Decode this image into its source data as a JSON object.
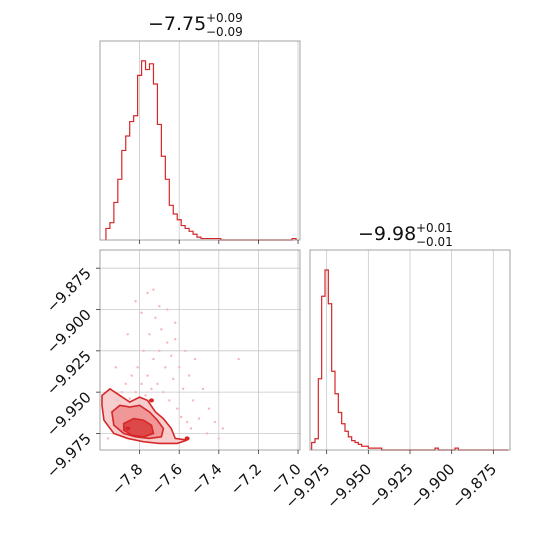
{
  "chart_data": [
    {
      "type": "histogram",
      "panel": "top-left",
      "title": {
        "value": "−7.75",
        "upper": "+0.09",
        "lower": "−0.09"
      },
      "xlim": [
        -8.0,
        -6.99
      ],
      "grid": true,
      "bins_x": [
        -7.96,
        -7.94,
        -7.92,
        -7.9,
        -7.88,
        -7.86,
        -7.84,
        -7.82,
        -7.8,
        -7.78,
        -7.76,
        -7.74,
        -7.72,
        -7.7,
        -7.68,
        -7.66,
        -7.64,
        -7.62,
        -7.6,
        -7.58,
        -7.56,
        -7.54,
        -7.52,
        -7.5,
        -7.48,
        -7.46,
        -7.44,
        -7.42,
        -7.4,
        -7.38,
        -7.36,
        -7.34,
        -7.32,
        -7.3,
        -7.28,
        -7.26,
        -7.24,
        -7.22,
        -7.2,
        -7.18,
        -7.16,
        -7.14,
        -7.12,
        -7.1,
        -7.08,
        -7.06,
        -7.04,
        -7.02
      ],
      "counts": [
        8,
        12,
        26,
        42,
        62,
        72,
        82,
        86,
        114,
        124,
        118,
        122,
        108,
        80,
        58,
        42,
        24,
        18,
        14,
        10,
        8,
        6,
        4,
        2,
        1,
        1,
        1,
        1,
        1,
        0,
        0,
        0,
        0,
        0,
        0,
        0,
        0,
        0,
        0,
        0,
        0,
        0,
        0,
        0,
        0,
        0,
        0,
        1
      ],
      "x_ticks": [
        "−7.8",
        "−7.6",
        "−7.4",
        "−7.2",
        "−7.0"
      ]
    },
    {
      "type": "scatter",
      "panel": "bottom-left",
      "xlim": [
        -8.0,
        -6.99
      ],
      "ylim": [
        -9.985,
        -9.864
      ],
      "grid": true,
      "points": [
        [
          -7.95,
          -9.962
        ],
        [
          -7.93,
          -9.968
        ],
        [
          -7.91,
          -9.955
        ],
        [
          -7.9,
          -9.972
        ],
        [
          -7.89,
          -9.95
        ],
        [
          -7.88,
          -9.96
        ],
        [
          -7.87,
          -9.945
        ],
        [
          -7.86,
          -9.966
        ],
        [
          -7.85,
          -9.954
        ],
        [
          -7.84,
          -9.94
        ],
        [
          -7.83,
          -9.962
        ],
        [
          -7.82,
          -9.95
        ],
        [
          -7.81,
          -9.935
        ],
        [
          -7.8,
          -9.958
        ],
        [
          -7.79,
          -9.945
        ],
        [
          -7.78,
          -9.925
        ],
        [
          -7.77,
          -9.952
        ],
        [
          -7.76,
          -9.94
        ],
        [
          -7.75,
          -9.915
        ],
        [
          -7.74,
          -9.948
        ],
        [
          -7.73,
          -9.93
        ],
        [
          -7.72,
          -9.905
        ],
        [
          -7.71,
          -9.945
        ],
        [
          -7.7,
          -9.925
        ],
        [
          -7.69,
          -9.912
        ],
        [
          -7.68,
          -9.95
        ],
        [
          -7.67,
          -9.935
        ],
        [
          -7.66,
          -9.9
        ],
        [
          -7.65,
          -9.955
        ],
        [
          -7.64,
          -9.928
        ],
        [
          -7.63,
          -9.942
        ],
        [
          -7.62,
          -9.918
        ],
        [
          -7.61,
          -9.96
        ],
        [
          -7.6,
          -9.935
        ],
        [
          -7.59,
          -9.965
        ],
        [
          -7.58,
          -9.948
        ],
        [
          -7.57,
          -9.925
        ],
        [
          -7.56,
          -9.968
        ],
        [
          -7.55,
          -9.94
        ],
        [
          -7.54,
          -9.972
        ],
        [
          -7.53,
          -9.955
        ],
        [
          -7.52,
          -9.93
        ],
        [
          -7.5,
          -9.966
        ],
        [
          -7.48,
          -9.948
        ],
        [
          -7.46,
          -9.975
        ],
        [
          -7.45,
          -9.96
        ],
        [
          -7.42,
          -9.968
        ],
        [
          -7.4,
          -9.978
        ],
        [
          -7.38,
          -9.972
        ],
        [
          -7.3,
          -9.93
        ],
        [
          -7.82,
          -9.895
        ],
        [
          -7.76,
          -9.89
        ],
        [
          -7.7,
          -9.898
        ],
        [
          -7.79,
          -9.902
        ],
        [
          -7.73,
          -9.888
        ],
        [
          -7.66,
          -9.92
        ],
        [
          -7.62,
          -9.908
        ],
        [
          -7.86,
          -9.915
        ],
        [
          -7.92,
          -9.935
        ],
        [
          -7.96,
          -9.978
        ]
      ],
      "contours": [
        {
          "level": "outer",
          "fill": "#f6c4c4",
          "polygon": [
            [
              -7.99,
              -9.952
            ],
            [
              -7.95,
              -9.948
            ],
            [
              -7.9,
              -9.952
            ],
            [
              -7.85,
              -9.956
            ],
            [
              -7.8,
              -9.953
            ],
            [
              -7.76,
              -9.955
            ],
            [
              -7.72,
              -9.962
            ],
            [
              -7.68,
              -9.966
            ],
            [
              -7.64,
              -9.972
            ],
            [
              -7.62,
              -9.978
            ],
            [
              -7.56,
              -9.979
            ],
            [
              -7.61,
              -9.981
            ],
            [
              -7.7,
              -9.981
            ],
            [
              -7.78,
              -9.98
            ],
            [
              -7.86,
              -9.978
            ],
            [
              -7.93,
              -9.975
            ],
            [
              -7.98,
              -9.967
            ],
            [
              -7.99,
              -9.958
            ]
          ]
        },
        {
          "level": "middle",
          "fill": "#ef8d8d",
          "polygon": [
            [
              -7.94,
              -9.962
            ],
            [
              -7.9,
              -9.958
            ],
            [
              -7.85,
              -9.959
            ],
            [
              -7.8,
              -9.958
            ],
            [
              -7.75,
              -9.962
            ],
            [
              -7.71,
              -9.967
            ],
            [
              -7.68,
              -9.972
            ],
            [
              -7.69,
              -9.977
            ],
            [
              -7.75,
              -9.978
            ],
            [
              -7.82,
              -9.977
            ],
            [
              -7.88,
              -9.975
            ],
            [
              -7.93,
              -9.97
            ]
          ]
        },
        {
          "level": "inner",
          "fill": "#d93b3b",
          "polygon": [
            [
              -7.88,
              -9.969
            ],
            [
              -7.83,
              -9.966
            ],
            [
              -7.78,
              -9.967
            ],
            [
              -7.74,
              -9.97
            ],
            [
              -7.73,
              -9.975
            ],
            [
              -7.78,
              -9.977
            ],
            [
              -7.84,
              -9.976
            ],
            [
              -7.88,
              -9.973
            ]
          ]
        }
      ],
      "x_ticks": [
        "−7.8",
        "−7.6",
        "−7.4",
        "−7.2",
        "−7.0"
      ],
      "y_ticks": [
        "−9.875",
        "−9.900",
        "−9.925",
        "−9.950",
        "−9.975"
      ]
    },
    {
      "type": "histogram",
      "panel": "bottom-right",
      "title": {
        "value": "−9.98",
        "upper": "+0.01",
        "lower": "−0.01"
      },
      "xlim": [
        -9.985,
        -9.865
      ],
      "grid": true,
      "bins_x": [
        -9.983,
        -9.981,
        -9.979,
        -9.977,
        -9.975,
        -9.973,
        -9.971,
        -9.969,
        -9.967,
        -9.965,
        -9.963,
        -9.961,
        -9.959,
        -9.957,
        -9.955,
        -9.953,
        -9.951,
        -9.949,
        -9.947,
        -9.945,
        -9.943,
        -9.941,
        -9.939,
        -9.937,
        -9.935,
        -9.933,
        -9.931,
        -9.929,
        -9.927,
        -9.925,
        -9.923,
        -9.921,
        -9.919,
        -9.917,
        -9.915,
        -9.913,
        -9.911,
        -9.909,
        -9.907,
        -9.905,
        -9.903,
        -9.901,
        -9.899,
        -9.897,
        -9.895,
        -9.893,
        -9.891,
        -9.889,
        -9.887,
        -9.885,
        -9.883,
        -9.881,
        -9.879,
        -9.877,
        -9.875,
        -9.873,
        -9.871,
        -9.869,
        -9.867
      ],
      "counts": [
        4,
        6,
        38,
        82,
        96,
        78,
        42,
        30,
        20,
        14,
        10,
        7,
        5,
        4,
        3,
        2,
        2,
        1,
        1,
        1,
        1,
        0,
        0,
        0,
        0,
        0,
        0,
        0,
        0,
        0,
        0,
        0,
        0,
        0,
        0,
        0,
        0,
        1,
        0,
        0,
        0,
        0,
        0,
        1,
        0,
        0,
        0,
        0,
        0,
        0,
        0,
        0,
        0,
        0,
        0,
        0,
        0,
        0,
        0
      ],
      "x_ticks": [
        "−9.975",
        "−9.950",
        "−9.925",
        "−9.900",
        "−9.875"
      ]
    }
  ]
}
